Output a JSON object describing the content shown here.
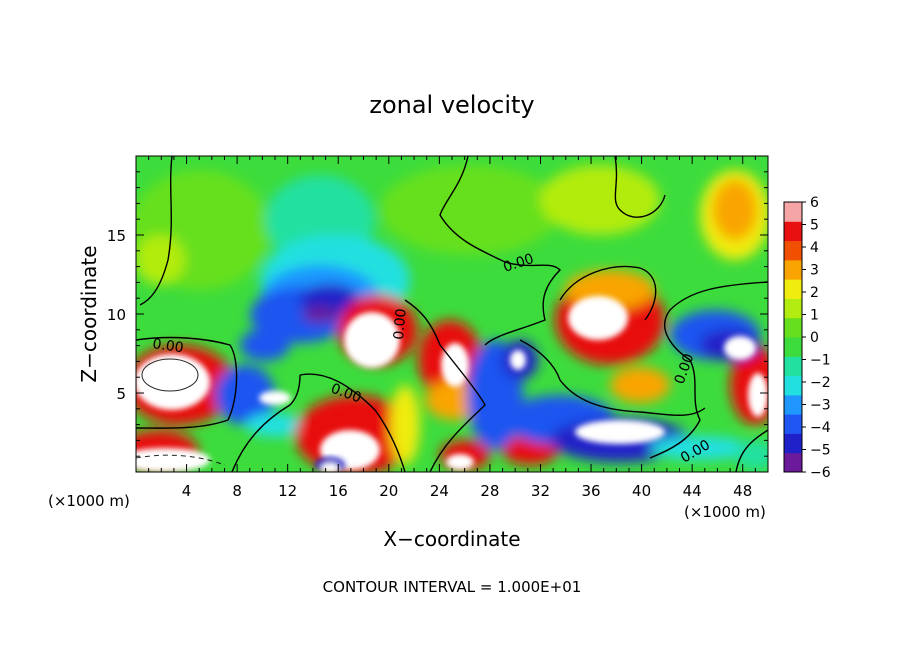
{
  "chart_data": {
    "type": "heatmap",
    "title": "zonal velocity",
    "xlabel": "X−coordinate",
    "ylabel": "Z−coordinate",
    "x_unit_label": "(×1000 m)",
    "z_unit_label": "(×1000 m)",
    "footer": "CONTOUR INTERVAL = 1.000E+01",
    "xlim": [
      0,
      50
    ],
    "ylim": [
      0,
      20
    ],
    "x_ticks": [
      4,
      8,
      12,
      16,
      20,
      24,
      28,
      32,
      36,
      40,
      44,
      48
    ],
    "y_ticks": [
      5,
      10,
      15
    ],
    "contour_labels": [
      "0.00",
      "0.00",
      "0.00",
      "0.00",
      "0.00",
      "0.00"
    ],
    "colorbar": {
      "min": -6,
      "max": 6,
      "tick_labels": [
        "6",
        "5",
        "4",
        "3",
        "2",
        "1",
        "0",
        "−1",
        "−2",
        "−3",
        "−4",
        "−5",
        "−6"
      ],
      "colors": [
        "#6a1a9a",
        "#2020c8",
        "#1f55f0",
        "#1f97ff",
        "#22e0e0",
        "#22e0a0",
        "#3ddc3d",
        "#66e01e",
        "#b2ec10",
        "#f0ec10",
        "#f9a400",
        "#f05000",
        "#e81010",
        "#f5a5a5"
      ]
    }
  }
}
